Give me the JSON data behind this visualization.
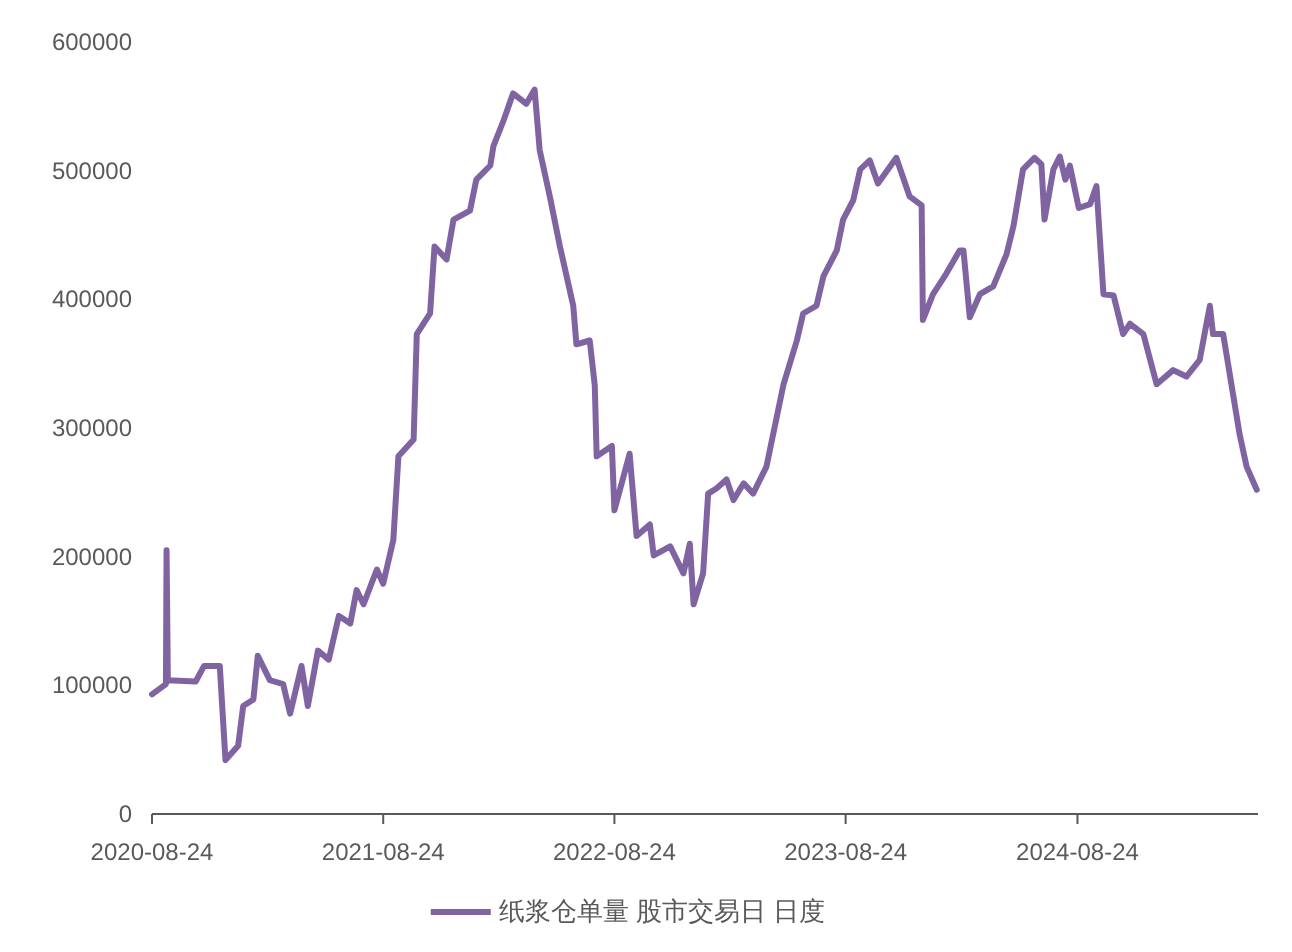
{
  "chart_data": {
    "type": "line",
    "legend": "bottom",
    "x": [
      "2020-08-24",
      "2020-09-15",
      "2020-09-16",
      "2020-09-18",
      "2020-11-01",
      "2020-11-14",
      "2020-12-09",
      "2020-12-18",
      "2021-01-07",
      "2021-01-15",
      "2021-01-31",
      "2021-02-07",
      "2021-02-26",
      "2021-03-19",
      "2021-03-30",
      "2021-04-17",
      "2021-04-27",
      "2021-05-13",
      "2021-05-30",
      "2021-06-15",
      "2021-07-03",
      "2021-07-13",
      "2021-07-24",
      "2021-08-14",
      "2021-08-24",
      "2021-09-09",
      "2021-09-17",
      "2021-10-11",
      "2021-10-16",
      "2021-11-06",
      "2021-11-13",
      "2021-12-02",
      "2021-12-13",
      "2022-01-08",
      "2022-01-18",
      "2022-02-09",
      "2022-02-14",
      "2022-03-02",
      "2022-03-17",
      "2022-04-07",
      "2022-04-20",
      "2022-04-28",
      "2022-05-14",
      "2022-05-30",
      "2022-06-20",
      "2022-06-25",
      "2022-07-16",
      "2022-07-24",
      "2022-07-27",
      "2022-08-20",
      "2022-08-24",
      "2022-09-17",
      "2022-09-28",
      "2022-10-19",
      "2022-10-25",
      "2022-11-20",
      "2022-12-11",
      "2022-12-21",
      "2022-12-27",
      "2023-01-11",
      "2023-01-19",
      "2023-02-01",
      "2023-02-17",
      "2023-02-28",
      "2023-03-16",
      "2023-03-31",
      "2023-04-21",
      "2023-05-18",
      "2023-06-08",
      "2023-06-18",
      "2023-07-09",
      "2023-07-20",
      "2023-08-10",
      "2023-08-20",
      "2023-09-05",
      "2023-09-16",
      "2023-10-01",
      "2023-10-14",
      "2023-11-12",
      "2023-12-03",
      "2023-12-22",
      "2023-12-24",
      "2024-01-09",
      "2024-01-30",
      "2024-02-20",
      "2024-02-26",
      "2024-03-07",
      "2024-03-23",
      "2024-04-13",
      "2024-05-04",
      "2024-05-15",
      "2024-05-30",
      "2024-06-17",
      "2024-06-28",
      "2024-07-03",
      "2024-07-17",
      "2024-07-27",
      "2024-08-05",
      "2024-08-12",
      "2024-08-26",
      "2024-09-13",
      "2024-09-23",
      "2024-10-04",
      "2024-10-20",
      "2024-11-04",
      "2024-11-15",
      "2024-12-06",
      "2024-12-27",
      "2025-01-22",
      "2025-02-12",
      "2025-03-05",
      "2025-03-21",
      "2025-03-26",
      "2025-04-11",
      "2025-05-07",
      "2025-05-18",
      "2025-06-03"
    ],
    "series": [
      {
        "name": "纸浆仓单量 股市交易日 日度",
        "color": "#8064a2",
        "values": [
          93000,
          101000,
          205000,
          104000,
          103000,
          115000,
          115000,
          42000,
          53000,
          84000,
          89000,
          123000,
          104000,
          101000,
          78000,
          115000,
          84000,
          127000,
          120000,
          154000,
          148000,
          174000,
          163000,
          190000,
          179000,
          213000,
          278000,
          291000,
          373000,
          389000,
          441000,
          431000,
          462000,
          469000,
          493000,
          504000,
          519000,
          539000,
          560000,
          552000,
          563000,
          516000,
          480000,
          441000,
          395000,
          365000,
          368000,
          333000,
          278000,
          286000,
          236000,
          280000,
          216000,
          225000,
          201000,
          208000,
          187000,
          210000,
          163000,
          187000,
          249000,
          253000,
          260000,
          244000,
          257000,
          249000,
          270000,
          334000,
          368000,
          389000,
          395000,
          418000,
          438000,
          462000,
          477000,
          501000,
          508000,
          490000,
          510000,
          480000,
          473000,
          384000,
          404000,
          420000,
          438000,
          438000,
          386000,
          404000,
          410000,
          435000,
          457000,
          501000,
          510000,
          505000,
          462000,
          501000,
          511000,
          493000,
          504000,
          471000,
          474000,
          488000,
          404000,
          403000,
          373000,
          381000,
          373000,
          334000,
          345000,
          340000,
          353000,
          395000,
          373000,
          373000,
          295000,
          270000,
          252000
        ]
      }
    ],
    "xlim": [
      "2020-08-24",
      "2025-06-05"
    ],
    "xticks": [
      "2020-08-24",
      "2021-08-24",
      "2022-08-24",
      "2023-08-24",
      "2024-08-24"
    ],
    "ylim": [
      0,
      600000
    ],
    "yticks": [
      0,
      100000,
      200000,
      300000,
      400000,
      500000,
      600000
    ]
  }
}
